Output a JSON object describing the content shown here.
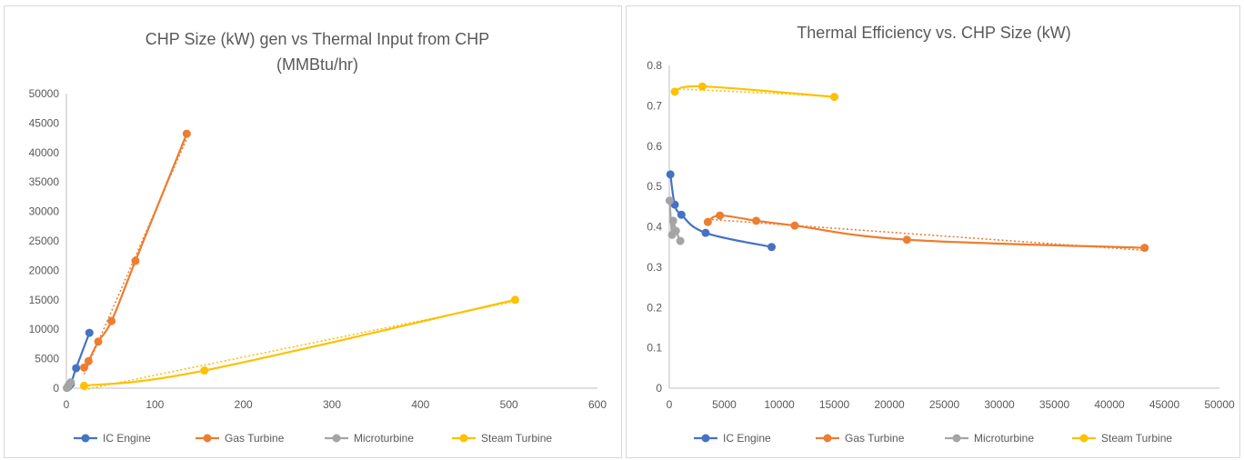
{
  "chart_data": [
    {
      "type": "scatter",
      "title_lines": [
        "CHP Size (kW) gen vs Thermal Input from CHP",
        "(MMBtu/hr)"
      ],
      "xlabel": "",
      "ylabel": "",
      "xlim": [
        0,
        600
      ],
      "ylim": [
        0,
        50000
      ],
      "xticks": [
        "0",
        "100",
        "200",
        "300",
        "400",
        "500",
        "600"
      ],
      "yticks": [
        "0",
        "5000",
        "10000",
        "15000",
        "20000",
        "25000",
        "30000",
        "35000",
        "40000",
        "45000",
        "50000"
      ],
      "legend_position": "bottom",
      "series": [
        {
          "name": "IC Engine",
          "color": "#4472C4",
          "x": [
            2,
            5,
            11,
            26
          ],
          "y": [
            200,
            700,
            3400,
            9400
          ],
          "trendline": false
        },
        {
          "name": "Gas Turbine",
          "color": "#ED7D31",
          "x": [
            20,
            25,
            36,
            51,
            78,
            136
          ],
          "y": [
            3500,
            4600,
            7900,
            11400,
            21600,
            43200
          ],
          "trendline": true
        },
        {
          "name": "Microturbine",
          "color": "#A5A5A5",
          "x": [
            0.5,
            1.5,
            3,
            5
          ],
          "y": [
            30,
            250,
            600,
            1000
          ],
          "trendline": false
        },
        {
          "name": "Steam Turbine",
          "color": "#FFC000",
          "x": [
            20,
            156,
            507
          ],
          "y": [
            400,
            3000,
            15000
          ],
          "trendline": true
        }
      ]
    },
    {
      "type": "scatter",
      "title_lines": [
        "Thermal Efficiency vs. CHP Size (kW)"
      ],
      "xlabel": "",
      "ylabel": "",
      "xlim": [
        0,
        50000
      ],
      "ylim": [
        0,
        0.8
      ],
      "xticks": [
        "0",
        "5000",
        "10000",
        "15000",
        "20000",
        "25000",
        "30000",
        "35000",
        "40000",
        "45000",
        "50000"
      ],
      "yticks": [
        "0",
        "0.1",
        "0.2",
        "0.3",
        "0.4",
        "0.5",
        "0.6",
        "0.7",
        "0.8"
      ],
      "legend_position": "bottom",
      "series": [
        {
          "name": "IC Engine",
          "color": "#4472C4",
          "x": [
            100,
            500,
            1100,
            3300,
            9300
          ],
          "y": [
            0.53,
            0.455,
            0.43,
            0.385,
            0.35
          ],
          "trendline": false
        },
        {
          "name": "Gas Turbine",
          "color": "#ED7D31",
          "x": [
            3500,
            4600,
            7900,
            11400,
            21600,
            43200
          ],
          "y": [
            0.412,
            0.428,
            0.415,
            0.403,
            0.368,
            0.348
          ],
          "trendline": true
        },
        {
          "name": "Microturbine",
          "color": "#A5A5A5",
          "x": [
            30,
            250,
            350,
            600,
            1000
          ],
          "y": [
            0.465,
            0.38,
            0.415,
            0.39,
            0.365
          ],
          "trendline": false
        },
        {
          "name": "Steam Turbine",
          "color": "#FFC000",
          "x": [
            500,
            3000,
            15000
          ],
          "y": [
            0.735,
            0.748,
            0.722
          ],
          "trendline": true
        }
      ]
    }
  ]
}
